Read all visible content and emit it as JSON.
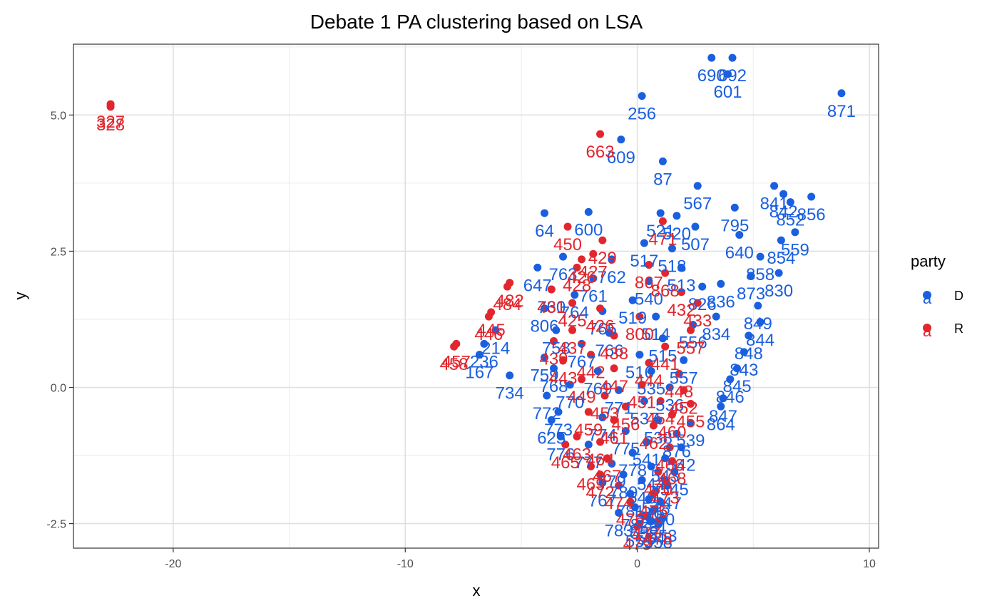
{
  "chart_data": {
    "type": "scatter",
    "title": "Debate 1 PA clustering based on LSA",
    "xlabel": "x",
    "ylabel": "y",
    "xlim": [
      -24.3,
      10.4
    ],
    "ylim": [
      -2.95,
      6.3
    ],
    "x_ticks": [
      -20,
      -10,
      0,
      10
    ],
    "x_tick_labels": [
      "-20",
      "-10",
      "0",
      "10"
    ],
    "y_ticks": [
      -2.5,
      0.0,
      2.5,
      5.0
    ],
    "y_tick_labels": [
      "-2.5",
      "0.0",
      "2.5",
      "5.0"
    ],
    "grid": true,
    "legend": {
      "title": "party",
      "position": "right",
      "glyph": "a",
      "entries": [
        {
          "label": "D",
          "color": "#1a5fe0"
        },
        {
          "label": "R",
          "color": "#e3262d"
        }
      ]
    },
    "series": [
      {
        "name": "D",
        "color": "#1a5fe0",
        "points": [
          {
            "x": 3.2,
            "y": 6.05,
            "label": "690"
          },
          {
            "x": 4.1,
            "y": 6.05,
            "label": "692"
          },
          {
            "x": 3.9,
            "y": 5.75,
            "label": "601"
          },
          {
            "x": 8.8,
            "y": 5.4,
            "label": "871"
          },
          {
            "x": 0.2,
            "y": 5.35,
            "label": "256"
          },
          {
            "x": -0.7,
            "y": 4.55,
            "label": "609"
          },
          {
            "x": 1.1,
            "y": 4.15,
            "label": "87"
          },
          {
            "x": 2.6,
            "y": 3.7,
            "label": "567"
          },
          {
            "x": 5.9,
            "y": 3.7,
            "label": "841"
          },
          {
            "x": 6.3,
            "y": 3.55,
            "label": "842"
          },
          {
            "x": 7.5,
            "y": 3.5,
            "label": "856"
          },
          {
            "x": 6.6,
            "y": 3.4,
            "label": "852"
          },
          {
            "x": 4.2,
            "y": 3.3,
            "label": "795"
          },
          {
            "x": -4.0,
            "y": 3.2,
            "label": "64"
          },
          {
            "x": -2.1,
            "y": 3.22,
            "label": "600"
          },
          {
            "x": 1.0,
            "y": 3.2,
            "label": "521"
          },
          {
            "x": 1.7,
            "y": 3.15,
            "label": "520"
          },
          {
            "x": 2.5,
            "y": 2.95,
            "label": "507"
          },
          {
            "x": 6.8,
            "y": 2.85,
            "label": "559"
          },
          {
            "x": 4.4,
            "y": 2.8,
            "label": "640"
          },
          {
            "x": 6.2,
            "y": 2.7,
            "label": "854"
          },
          {
            "x": 0.3,
            "y": 2.65,
            "label": "517"
          },
          {
            "x": 1.5,
            "y": 2.55,
            "label": "518"
          },
          {
            "x": 5.3,
            "y": 2.4,
            "label": "858"
          },
          {
            "x": -3.2,
            "y": 2.4,
            "label": "763"
          },
          {
            "x": -1.1,
            "y": 2.35,
            "label": "762"
          },
          {
            "x": -4.3,
            "y": 2.2,
            "label": "647"
          },
          {
            "x": 1.9,
            "y": 2.2,
            "label": "513"
          },
          {
            "x": 6.1,
            "y": 2.1,
            "label": "830"
          },
          {
            "x": 4.9,
            "y": 2.05,
            "label": "873"
          },
          {
            "x": -1.9,
            "y": 2.0,
            "label": "761"
          },
          {
            "x": 0.5,
            "y": 1.95,
            "label": "540"
          },
          {
            "x": 3.6,
            "y": 1.9,
            "label": "836"
          },
          {
            "x": -3.7,
            "y": 1.8,
            "label": "760"
          },
          {
            "x": -2.7,
            "y": 1.7,
            "label": "764"
          },
          {
            "x": 2.8,
            "y": 1.85,
            "label": "826"
          },
          {
            "x": -0.2,
            "y": 1.6,
            "label": "519"
          },
          {
            "x": 5.2,
            "y": 1.5,
            "label": "849"
          },
          {
            "x": -4.0,
            "y": 1.45,
            "label": "806"
          },
          {
            "x": -1.5,
            "y": 1.4,
            "label": "765"
          },
          {
            "x": 0.8,
            "y": 1.3,
            "label": "514"
          },
          {
            "x": 3.4,
            "y": 1.3,
            "label": "834"
          },
          {
            "x": 5.3,
            "y": 1.2,
            "label": "844"
          },
          {
            "x": 2.4,
            "y": 1.15,
            "label": "556"
          },
          {
            "x": -3.5,
            "y": 1.05,
            "label": "758"
          },
          {
            "x": -1.2,
            "y": 1.0,
            "label": "766"
          },
          {
            "x": -6.1,
            "y": 1.05,
            "label": "214"
          },
          {
            "x": 4.8,
            "y": 0.95,
            "label": "848"
          },
          {
            "x": 1.1,
            "y": 0.9,
            "label": "515"
          },
          {
            "x": -6.6,
            "y": 0.8,
            "label": "236"
          },
          {
            "x": -2.4,
            "y": 0.8,
            "label": "767"
          },
          {
            "x": 4.6,
            "y": 0.65,
            "label": "843"
          },
          {
            "x": 0.1,
            "y": 0.6,
            "label": "516"
          },
          {
            "x": -6.8,
            "y": 0.6,
            "label": "167"
          },
          {
            "x": -4.0,
            "y": 0.55,
            "label": "759"
          },
          {
            "x": 2.0,
            "y": 0.5,
            "label": "557"
          },
          {
            "x": 4.3,
            "y": 0.35,
            "label": "845"
          },
          {
            "x": -3.6,
            "y": 0.35,
            "label": "768"
          },
          {
            "x": -1.7,
            "y": 0.3,
            "label": "769"
          },
          {
            "x": 0.6,
            "y": 0.3,
            "label": "535"
          },
          {
            "x": -5.5,
            "y": 0.22,
            "label": "734"
          },
          {
            "x": 4.0,
            "y": 0.15,
            "label": "846"
          },
          {
            "x": -2.9,
            "y": 0.05,
            "label": "770"
          },
          {
            "x": 1.4,
            "y": 0.0,
            "label": "536"
          },
          {
            "x": -0.8,
            "y": -0.05,
            "label": "771"
          },
          {
            "x": -3.9,
            "y": -0.15,
            "label": "772"
          },
          {
            "x": 3.7,
            "y": -0.2,
            "label": "847"
          },
          {
            "x": 0.3,
            "y": -0.25,
            "label": "537"
          },
          {
            "x": 3.6,
            "y": -0.35,
            "label": "864"
          },
          {
            "x": -3.4,
            "y": -0.45,
            "label": "773"
          },
          {
            "x": -1.5,
            "y": -0.55,
            "label": "774"
          },
          {
            "x": 0.9,
            "y": -0.6,
            "label": "538"
          },
          {
            "x": -3.7,
            "y": -0.6,
            "label": "625"
          },
          {
            "x": 2.3,
            "y": -0.65,
            "label": "539"
          },
          {
            "x": -0.5,
            "y": -0.8,
            "label": "775"
          },
          {
            "x": 1.7,
            "y": -0.85,
            "label": "876"
          },
          {
            "x": -3.3,
            "y": -0.9,
            "label": "776"
          },
          {
            "x": 0.4,
            "y": -1.0,
            "label": "541"
          },
          {
            "x": -2.1,
            "y": -1.05,
            "label": "777"
          },
          {
            "x": 1.9,
            "y": -1.1,
            "label": "542"
          },
          {
            "x": -0.2,
            "y": -1.2,
            "label": "778"
          },
          {
            "x": 1.2,
            "y": -1.3,
            "label": "543"
          },
          {
            "x": -1.1,
            "y": -1.4,
            "label": "779"
          },
          {
            "x": 0.6,
            "y": -1.45,
            "label": "544"
          },
          {
            "x": 1.6,
            "y": -1.55,
            "label": "545"
          },
          {
            "x": -0.6,
            "y": -1.6,
            "label": "780"
          },
          {
            "x": 0.2,
            "y": -1.7,
            "label": "546"
          },
          {
            "x": -1.5,
            "y": -1.75,
            "label": "767"
          },
          {
            "x": 1.3,
            "y": -1.8,
            "label": "547"
          },
          {
            "x": 0.8,
            "y": -1.9,
            "label": "548"
          },
          {
            "x": -0.3,
            "y": -1.95,
            "label": "781"
          },
          {
            "x": 0.5,
            "y": -2.05,
            "label": "549"
          },
          {
            "x": 1.0,
            "y": -2.1,
            "label": "550"
          },
          {
            "x": -0.1,
            "y": -2.2,
            "label": "782"
          },
          {
            "x": 0.7,
            "y": -2.25,
            "label": "551"
          },
          {
            "x": -0.8,
            "y": -2.3,
            "label": "783"
          },
          {
            "x": 0.3,
            "y": -2.35,
            "label": "552"
          },
          {
            "x": 1.1,
            "y": -2.4,
            "label": "553"
          },
          {
            "x": 0.6,
            "y": -2.45,
            "label": "554"
          },
          {
            "x": 0.1,
            "y": -2.5,
            "label": "555"
          },
          {
            "x": 0.9,
            "y": -2.52,
            "label": "558"
          }
        ]
      },
      {
        "name": "R",
        "color": "#e3262d",
        "points": [
          {
            "x": -22.7,
            "y": 5.2,
            "label": "327"
          },
          {
            "x": -22.7,
            "y": 5.15,
            "label": "328"
          },
          {
            "x": -1.6,
            "y": 4.65,
            "label": "663"
          },
          {
            "x": -3.0,
            "y": 2.95,
            "label": "450"
          },
          {
            "x": 1.1,
            "y": 3.05,
            "label": "471"
          },
          {
            "x": -1.5,
            "y": 2.7,
            "label": "429"
          },
          {
            "x": -1.9,
            "y": 2.45,
            "label": "427"
          },
          {
            "x": -2.4,
            "y": 2.35,
            "label": "426"
          },
          {
            "x": -2.6,
            "y": 2.2,
            "label": "428"
          },
          {
            "x": 0.5,
            "y": 2.25,
            "label": "867"
          },
          {
            "x": 1.2,
            "y": 2.1,
            "label": "868"
          },
          {
            "x": -5.5,
            "y": 1.92,
            "label": "482"
          },
          {
            "x": -5.6,
            "y": 1.85,
            "label": "484"
          },
          {
            "x": -3.7,
            "y": 1.8,
            "label": "431"
          },
          {
            "x": 1.9,
            "y": 1.75,
            "label": "432"
          },
          {
            "x": -2.8,
            "y": 1.55,
            "label": "425"
          },
          {
            "x": -1.6,
            "y": 1.45,
            "label": "426"
          },
          {
            "x": 2.6,
            "y": 1.55,
            "label": "433"
          },
          {
            "x": -6.3,
            "y": 1.38,
            "label": "445"
          },
          {
            "x": -6.4,
            "y": 1.3,
            "label": "446"
          },
          {
            "x": 0.1,
            "y": 1.3,
            "label": "800"
          },
          {
            "x": 2.3,
            "y": 1.05,
            "label": "557"
          },
          {
            "x": -2.8,
            "y": 1.05,
            "label": "437"
          },
          {
            "x": -1.0,
            "y": 0.95,
            "label": "438"
          },
          {
            "x": -3.6,
            "y": 0.85,
            "label": "439"
          },
          {
            "x": -7.8,
            "y": 0.8,
            "label": "457"
          },
          {
            "x": -7.9,
            "y": 0.75,
            "label": "458"
          },
          {
            "x": 1.2,
            "y": 0.75,
            "label": "441"
          },
          {
            "x": -2.0,
            "y": 0.6,
            "label": "442"
          },
          {
            "x": -3.2,
            "y": 0.5,
            "label": "443"
          },
          {
            "x": 0.5,
            "y": 0.45,
            "label": "444"
          },
          {
            "x": -1.0,
            "y": 0.35,
            "label": "447"
          },
          {
            "x": 1.8,
            "y": 0.25,
            "label": "448"
          },
          {
            "x": -2.4,
            "y": 0.15,
            "label": "449"
          },
          {
            "x": 0.2,
            "y": 0.05,
            "label": "451"
          },
          {
            "x": 2.0,
            "y": -0.05,
            "label": "452"
          },
          {
            "x": -1.4,
            "y": -0.15,
            "label": "453"
          },
          {
            "x": 1.0,
            "y": -0.25,
            "label": "454"
          },
          {
            "x": 2.3,
            "y": -0.3,
            "label": "455"
          },
          {
            "x": -0.5,
            "y": -0.35,
            "label": "456"
          },
          {
            "x": -2.1,
            "y": -0.45,
            "label": "459"
          },
          {
            "x": 1.5,
            "y": -0.5,
            "label": "460"
          },
          {
            "x": -1.0,
            "y": -0.6,
            "label": "461"
          },
          {
            "x": 0.7,
            "y": -0.7,
            "label": "462"
          },
          {
            "x": -2.6,
            "y": -0.9,
            "label": "463"
          },
          {
            "x": -1.6,
            "y": -1.0,
            "label": "464"
          },
          {
            "x": -3.1,
            "y": -1.05,
            "label": "465"
          },
          {
            "x": 1.4,
            "y": -1.1,
            "label": "466"
          },
          {
            "x": -1.3,
            "y": -1.3,
            "label": "467"
          },
          {
            "x": 1.5,
            "y": -1.35,
            "label": "468"
          },
          {
            "x": -2.0,
            "y": -1.45,
            "label": "469"
          },
          {
            "x": 0.9,
            "y": -1.55,
            "label": "470"
          },
          {
            "x": -1.6,
            "y": -1.6,
            "label": "472"
          },
          {
            "x": 1.2,
            "y": -1.7,
            "label": "473"
          },
          {
            "x": -0.8,
            "y": -1.8,
            "label": "474"
          },
          {
            "x": 0.7,
            "y": -1.95,
            "label": "475"
          },
          {
            "x": -0.3,
            "y": -2.1,
            "label": "476"
          },
          {
            "x": 0.4,
            "y": -2.35,
            "label": "477"
          },
          {
            "x": 0.9,
            "y": -2.45,
            "label": "478"
          },
          {
            "x": 0.0,
            "y": -2.55,
            "label": "479"
          }
        ]
      }
    ]
  }
}
